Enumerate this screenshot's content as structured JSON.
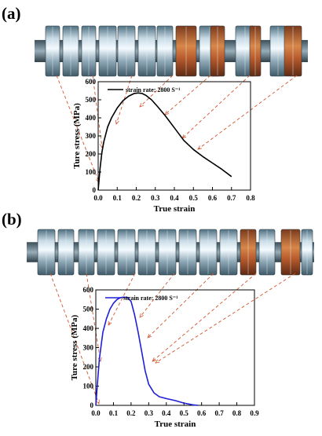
{
  "figure": {
    "panel_labels": [
      "(a)",
      "(b)"
    ]
  },
  "colors": {
    "series_a": "#000000",
    "series_b": "#1f1fd6",
    "guide_arrows": "#d2552e"
  },
  "chart_data": [
    {
      "type": "line",
      "panel": "(a)",
      "xlabel": "True strain",
      "ylabel": "Ture stress (MPa)",
      "xlim": [
        0.0,
        0.8
      ],
      "ylim": [
        0,
        600
      ],
      "x_ticks": [
        "0.0",
        "0.1",
        "0.2",
        "0.3",
        "0.4",
        "0.5",
        "0.6",
        "0.7",
        "0.8"
      ],
      "y_ticks": [
        "0",
        "100",
        "200",
        "300",
        "400",
        "500",
        "600"
      ],
      "legend": {
        "label": "strain rate: 2800 S⁻¹",
        "placement": "top-left"
      },
      "series": [
        {
          "x": [
            0.0,
            0.01,
            0.02,
            0.03,
            0.05,
            0.07,
            0.1,
            0.13,
            0.16,
            0.19,
            0.21,
            0.23,
            0.25,
            0.28,
            0.31,
            0.35,
            0.4,
            0.45,
            0.5,
            0.55,
            0.6,
            0.65,
            0.7
          ],
          "y": [
            0,
            120,
            210,
            270,
            350,
            400,
            455,
            495,
            520,
            535,
            538,
            535,
            525,
            500,
            465,
            415,
            345,
            275,
            225,
            185,
            150,
            115,
            75
          ]
        }
      ],
      "grid": false
    },
    {
      "type": "line",
      "panel": "(b)",
      "xlabel": "True strain",
      "ylabel": "Ture stress (MPa)",
      "xlim": [
        0.0,
        0.9
      ],
      "ylim": [
        0,
        600
      ],
      "x_ticks": [
        "0.0",
        "0.1",
        "0.2",
        "0.3",
        "0.4",
        "0.5",
        "0.6",
        "0.7",
        "0.8",
        "0.9"
      ],
      "y_ticks": [
        "0",
        "100",
        "200",
        "300",
        "400",
        "500",
        "600"
      ],
      "legend": {
        "label": "strain rate: 2800 S⁻¹",
        "placement": "top-left"
      },
      "series": [
        {
          "x": [
            0.0,
            0.01,
            0.02,
            0.04,
            0.06,
            0.08,
            0.1,
            0.12,
            0.14,
            0.16,
            0.18,
            0.2,
            0.22,
            0.24,
            0.26,
            0.28,
            0.3,
            0.33,
            0.36,
            0.4,
            0.45,
            0.5,
            0.55,
            0.58
          ],
          "y": [
            0,
            120,
            240,
            380,
            450,
            500,
            530,
            550,
            560,
            562,
            560,
            540,
            470,
            380,
            280,
            180,
            110,
            65,
            45,
            35,
            25,
            12,
            3,
            0
          ]
        }
      ],
      "grid": false
    }
  ]
}
